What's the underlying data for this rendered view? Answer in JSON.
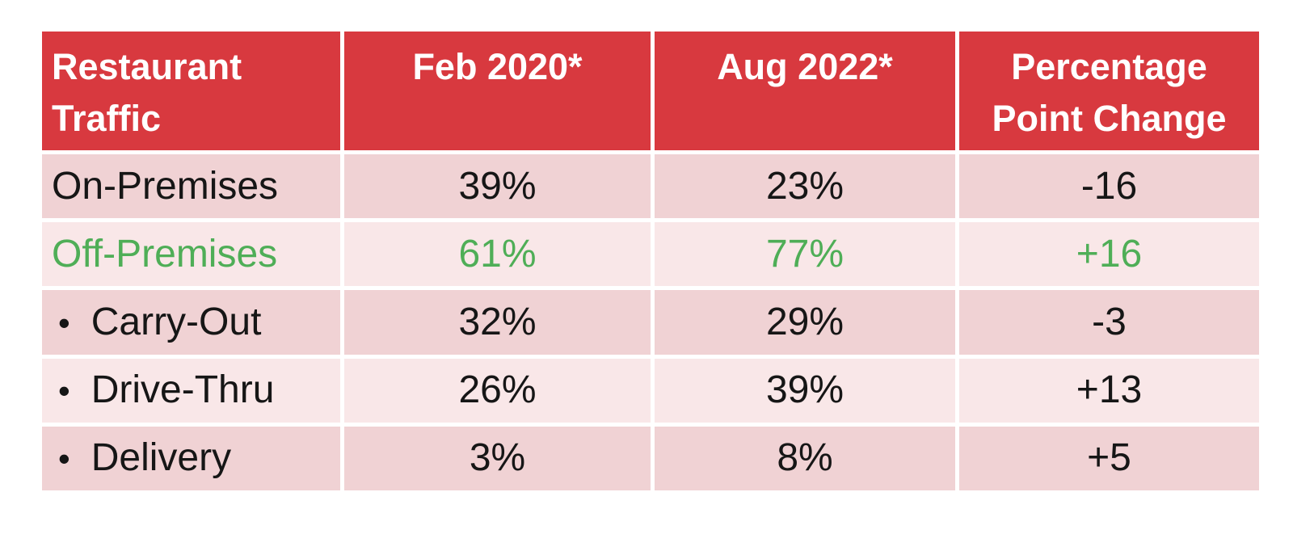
{
  "colors": {
    "header_bg": "#D8393F",
    "header_text": "#FFFFFF",
    "row_odd_bg": "#F0D2D4",
    "row_even_bg": "#F9E7E8",
    "highlight_green": "#4FAE57",
    "text": "#161616",
    "grid": "#FFFFFF"
  },
  "table": {
    "bullet_glyph": "•"
  },
  "chart_data": {
    "type": "table",
    "columns": [
      "Restaurant Traffic",
      "Feb 2020*",
      "Aug 2022*",
      "Percentage Point Change"
    ],
    "rows": [
      {
        "label": "On-Premises",
        "bullet": false,
        "highlight": false,
        "values": [
          "39%",
          "23%",
          "-16"
        ]
      },
      {
        "label": "Off-Premises",
        "bullet": false,
        "highlight": true,
        "values": [
          "61%",
          "77%",
          "+16"
        ]
      },
      {
        "label": "Carry-Out",
        "bullet": true,
        "highlight": false,
        "values": [
          "32%",
          "29%",
          "-3"
        ]
      },
      {
        "label": "Drive-Thru",
        "bullet": true,
        "highlight": false,
        "values": [
          "26%",
          "39%",
          "+13"
        ]
      },
      {
        "label": "Delivery",
        "bullet": true,
        "highlight": false,
        "values": [
          "3%",
          "8%",
          "+5"
        ]
      }
    ]
  }
}
